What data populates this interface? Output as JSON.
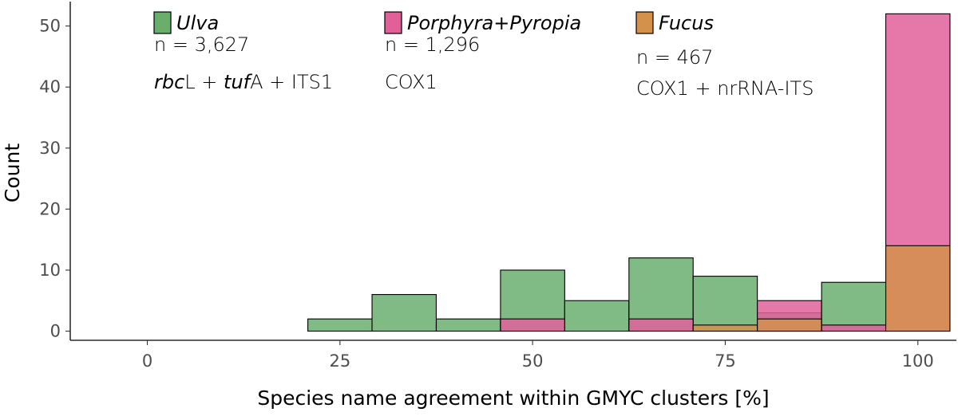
{
  "chart_data": {
    "type": "bar",
    "subtype": "overlaid-histogram",
    "title": "",
    "xlabel": "Species name agreement within GMYC clusters [%]",
    "ylabel": "Count",
    "xlim": [
      -10,
      105
    ],
    "ylim": [
      -1.5,
      54
    ],
    "xticks": [
      0,
      25,
      50,
      75,
      100
    ],
    "xtick_labels": [
      "0",
      "25",
      "50",
      "75",
      "100"
    ],
    "yticks": [
      0,
      10,
      20,
      30,
      40,
      50
    ],
    "ytick_labels": [
      "0",
      "10",
      "20",
      "30",
      "40",
      "50"
    ],
    "bin_width": 8.33,
    "bin_centers": [
      8.33,
      16.67,
      25,
      33.33,
      41.67,
      50,
      58.33,
      66.67,
      75,
      83.33,
      91.67,
      100
    ],
    "series": [
      {
        "name": "Ulva",
        "n_text": "n = 3,627",
        "marker_parts": [
          {
            "text": "rbc",
            "italic": true
          },
          {
            "text": "L + ",
            "italic": false
          },
          {
            "text": "tuf",
            "italic": true
          },
          {
            "text": "A + ITS1",
            "italic": false
          }
        ],
        "color": "#6aae6e",
        "values": [
          0,
          0,
          2,
          6,
          2,
          10,
          5,
          12,
          9,
          3,
          8,
          0
        ]
      },
      {
        "name": "Porphyra+Pyropia",
        "n_text": "n = 1,296",
        "marker_parts": [
          {
            "text": "COX1",
            "italic": false
          }
        ],
        "color": "#e1609a",
        "values": [
          0,
          0,
          0,
          0,
          0,
          2,
          0,
          2,
          0,
          5,
          1,
          52
        ]
      },
      {
        "name": "Fucus",
        "n_text": "n = 467",
        "marker_parts": [
          {
            "text": "COX1 + nrRNA-ITS",
            "italic": false
          }
        ],
        "color": "#d4914c",
        "values": [
          0,
          0,
          0,
          0,
          0,
          0,
          0,
          0,
          1,
          2,
          0,
          14
        ]
      }
    ],
    "legend_position": "top"
  }
}
